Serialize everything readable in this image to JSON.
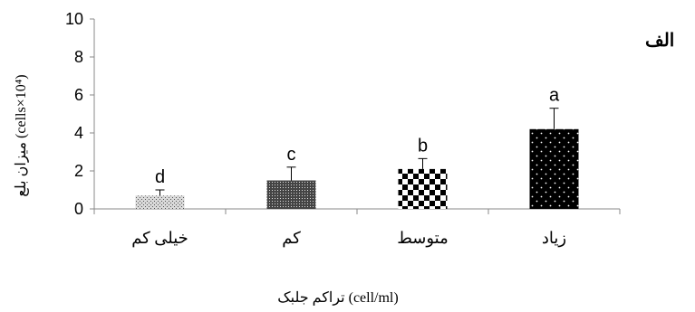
{
  "panel_label": "الف",
  "chart_data": {
    "type": "bar",
    "title": "",
    "categories": [
      "خیلی کم",
      "کم",
      "متوسط",
      "زیاد"
    ],
    "values": [
      0.7,
      1.5,
      2.1,
      4.2
    ],
    "errors": [
      0.3,
      0.7,
      0.55,
      1.1
    ],
    "significance_letters": [
      "d",
      "c",
      "b",
      "a"
    ],
    "yticks": [
      0,
      2,
      4,
      6,
      8,
      10
    ],
    "ylim": [
      0,
      10
    ],
    "ylabel": "میزان بلع (cells×10⁴)",
    "xlabel": "تراکم جلبک (cell/ml)",
    "grid": false,
    "patterns": [
      "light-stipple",
      "dense-dots",
      "checkerboard",
      "dark-with-white-dots"
    ]
  }
}
